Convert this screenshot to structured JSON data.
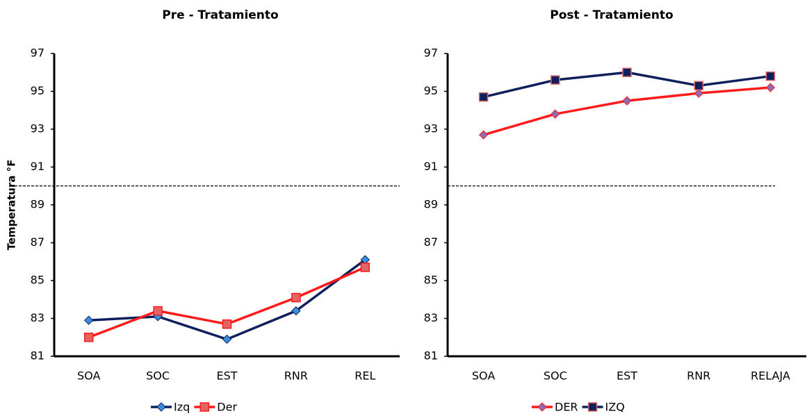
{
  "chart_data": [
    {
      "type": "line",
      "title": "Pre - Tratamiento",
      "y_label": "Temperatura °F",
      "categories": [
        "SOA",
        "SOC",
        "EST",
        "RNR",
        "REL"
      ],
      "series": [
        {
          "name": "Izq",
          "color": "#0d1f5c",
          "marker": "diamond",
          "values": [
            82.9,
            83.1,
            81.9,
            83.4,
            86.1
          ]
        },
        {
          "name": "Der",
          "color": "#ff1a1a",
          "marker": "square",
          "values": [
            82.0,
            83.4,
            82.7,
            84.1,
            85.7
          ]
        }
      ],
      "ylim": [
        81,
        97
      ],
      "yticks": [
        81,
        83,
        85,
        87,
        89,
        91,
        93,
        95,
        97
      ],
      "reference_line": 90
    },
    {
      "type": "line",
      "title": "Post - Tratamiento",
      "categories": [
        "SOA",
        "SOC",
        "EST",
        "RNR",
        "RELAJA"
      ],
      "series": [
        {
          "name": "DER",
          "color": "#ff1a1a",
          "marker": "diamond",
          "values": [
            92.7,
            93.8,
            94.5,
            94.9,
            95.2
          ]
        },
        {
          "name": "IZQ",
          "color": "#0d1f5c",
          "marker": "square",
          "values": [
            94.7,
            95.6,
            96.0,
            95.3,
            95.8
          ]
        }
      ],
      "ylim": [
        81,
        97
      ],
      "yticks": [
        81,
        83,
        85,
        87,
        89,
        91,
        93,
        95,
        97
      ],
      "reference_line": 90
    }
  ]
}
